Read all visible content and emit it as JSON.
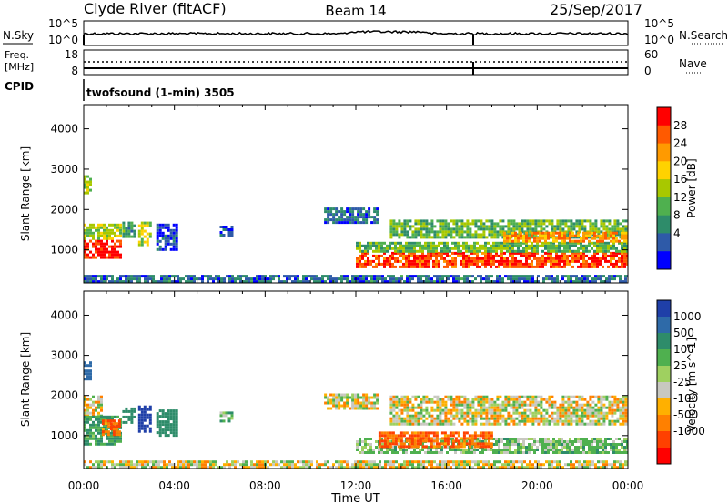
{
  "header": {
    "station": "Clyde River (fitACF)",
    "beam": "Beam 14",
    "date": "25/Sep/2017"
  },
  "top_panels": {
    "nsky_label": "N.Sky",
    "nsky_ticks": [
      "10^5",
      "10^0"
    ],
    "nsearch_label": "N.Search",
    "nsearch_ticks": [
      "10^5",
      "10^0"
    ],
    "freq_label_1": "Freq.",
    "freq_label_2": "[MHz]",
    "freq_ticks": [
      "18",
      "8"
    ],
    "nave_label": "Nave",
    "nave_ticks": [
      "60",
      "0"
    ],
    "cpid_label": "CPID",
    "cpid_text": "twofsound (1-min) 3505"
  },
  "axes": {
    "ylabel": "Slant Range [km]",
    "xlabel": "Time UT",
    "y_ticks": [
      "4000",
      "3000",
      "2000",
      "1000"
    ],
    "x_ticks": [
      "00:00",
      "04:00",
      "08:00",
      "12:00",
      "16:00",
      "20:00",
      "00:00"
    ]
  },
  "chart_data": [
    {
      "type": "heatmap",
      "title": "",
      "xlabel": "Time UT",
      "ylabel": "Slant Range [km]",
      "x_range_hours": [
        0,
        24
      ],
      "y_range_km": [
        180,
        4600
      ],
      "colorbar_label": "Power [dB]",
      "colorbar_ticks": [
        "28",
        "24",
        "20",
        "16",
        "12",
        "8",
        "4"
      ],
      "colorbar_colors": [
        "#ff0000",
        "#ff5a00",
        "#ff9a00",
        "#ffd200",
        "#a8c800",
        "#4fb04f",
        "#2e8c6a",
        "#2e5aa8",
        "#0000ff"
      ],
      "regions": [
        {
          "t0": 0.0,
          "t1": 0.3,
          "r0": 2400,
          "r1": 2850,
          "v": 16
        },
        {
          "t0": 0.0,
          "t1": 1.6,
          "r0": 800,
          "r1": 1250,
          "v": 30
        },
        {
          "t0": 0.0,
          "t1": 1.6,
          "r0": 1250,
          "r1": 1650,
          "v": 16
        },
        {
          "t0": 1.7,
          "t1": 2.3,
          "r0": 1300,
          "r1": 1700,
          "v": 12
        },
        {
          "t0": 2.4,
          "t1": 3.0,
          "r0": 1100,
          "r1": 1700,
          "v": 18
        },
        {
          "t0": 3.2,
          "t1": 4.1,
          "r0": 1000,
          "r1": 1650,
          "v": 6
        },
        {
          "t0": 6.0,
          "t1": 6.5,
          "r0": 1350,
          "r1": 1600,
          "v": 6
        },
        {
          "t0": 10.6,
          "t1": 13.0,
          "r0": 1700,
          "r1": 2050,
          "v": 8
        },
        {
          "t0": 12.0,
          "t1": 24.0,
          "r0": 550,
          "r1": 950,
          "v": 28
        },
        {
          "t0": 12.0,
          "t1": 24.0,
          "r0": 950,
          "r1": 1200,
          "v": 14
        },
        {
          "t0": 13.5,
          "t1": 24.0,
          "r0": 1300,
          "r1": 1750,
          "v": 14
        },
        {
          "t0": 18.5,
          "t1": 24.0,
          "r0": 1200,
          "r1": 1450,
          "v": 24
        },
        {
          "t0": 0.0,
          "t1": 24.0,
          "r0": 180,
          "r1": 380,
          "v": 8
        }
      ]
    },
    {
      "type": "heatmap",
      "title": "",
      "xlabel": "Time UT",
      "ylabel": "Slant Range [km]",
      "x_range_hours": [
        0,
        24
      ],
      "y_range_km": [
        180,
        4600
      ],
      "colorbar_label": "Velocity [m s^-1]",
      "colorbar_ticks": [
        "1000",
        "500",
        "100",
        "25",
        "-25",
        "-100",
        "-500",
        "-1000"
      ],
      "colorbar_colors": [
        "#1f3fa8",
        "#2e6aa8",
        "#2e8c6a",
        "#4fb04f",
        "#9fd060",
        "#c8c8c0",
        "#ffb000",
        "#ff8000",
        "#ff4000",
        "#ff0000"
      ],
      "regions": [
        {
          "t0": 0.0,
          "t1": 0.3,
          "r0": 2400,
          "r1": 2850,
          "v": 600
        },
        {
          "t0": 0.0,
          "t1": 0.8,
          "r0": 1500,
          "r1": 2000,
          "v": 0
        },
        {
          "t0": 0.0,
          "t1": 1.6,
          "r0": 800,
          "r1": 1500,
          "v": 150
        },
        {
          "t0": 0.8,
          "t1": 1.6,
          "r0": 1000,
          "r1": 1400,
          "v": -150
        },
        {
          "t0": 1.7,
          "t1": 2.3,
          "r0": 1300,
          "r1": 1700,
          "v": 300
        },
        {
          "t0": 2.4,
          "t1": 3.0,
          "r0": 1100,
          "r1": 1750,
          "v": 1000
        },
        {
          "t0": 3.2,
          "t1": 4.1,
          "r0": 1000,
          "r1": 1650,
          "v": 300
        },
        {
          "t0": 6.0,
          "t1": 6.5,
          "r0": 1350,
          "r1": 1600,
          "v": 100
        },
        {
          "t0": 10.6,
          "t1": 13.0,
          "r0": 1700,
          "r1": 2050,
          "v": 0
        },
        {
          "t0": 12.0,
          "t1": 24.0,
          "r0": 550,
          "r1": 950,
          "v": 80
        },
        {
          "t0": 13.0,
          "t1": 18.0,
          "r0": 750,
          "r1": 1100,
          "v": -150
        },
        {
          "t0": 13.5,
          "t1": 24.0,
          "r0": 1300,
          "r1": 2000,
          "v": 0
        },
        {
          "t0": 0.0,
          "t1": 24.0,
          "r0": 180,
          "r1": 380,
          "v": 0
        }
      ]
    }
  ]
}
